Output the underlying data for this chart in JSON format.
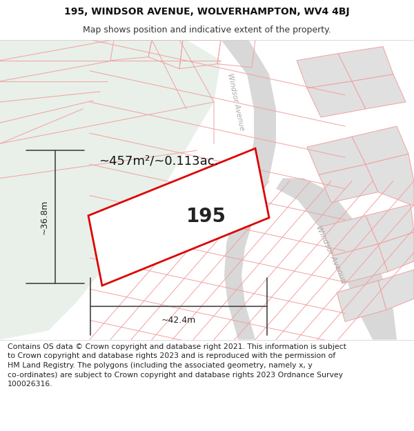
{
  "title": "195, WINDSOR AVENUE, WOLVERHAMPTON, WV4 4BJ",
  "subtitle": "Map shows position and indicative extent of the property.",
  "area_text": "~457m²/~0.113ac.",
  "label_195": "195",
  "dim_width": "~42.4m",
  "dim_height": "~36.8m",
  "road_label_top": "Windsor Avenue",
  "road_label_bottom": "Windsor Avenue",
  "footer_line1": "Contains OS data © Crown copyright and database right 2021. This information is subject",
  "footer_line2": "to Crown copyright and database rights 2023 and is reproduced with the permission of",
  "footer_line3": "HM Land Registry. The polygons (including the associated geometry, namely x, y",
  "footer_line4": "co-ordinates) are subject to Crown copyright and database rights 2023 Ordnance Survey",
  "footer_line5": "100026316.",
  "bg_color": "#ffffff",
  "map_bg": "#f7f7f7",
  "green_color": "#e8f0e9",
  "pink": "#f2a0a0",
  "red_poly": "#dd0000",
  "gray_road": "#d8d8d8",
  "gray_building": "#e0e0e0",
  "road_line_color": "#c0c0c0",
  "title_fontsize": 10,
  "subtitle_fontsize": 9,
  "footer_fontsize": 7.8,
  "area_fontsize": 13,
  "label_fontsize": 20,
  "dim_fontsize": 9,
  "road_label_fontsize": 7.5,
  "road_label_color": "#aaaaaa"
}
